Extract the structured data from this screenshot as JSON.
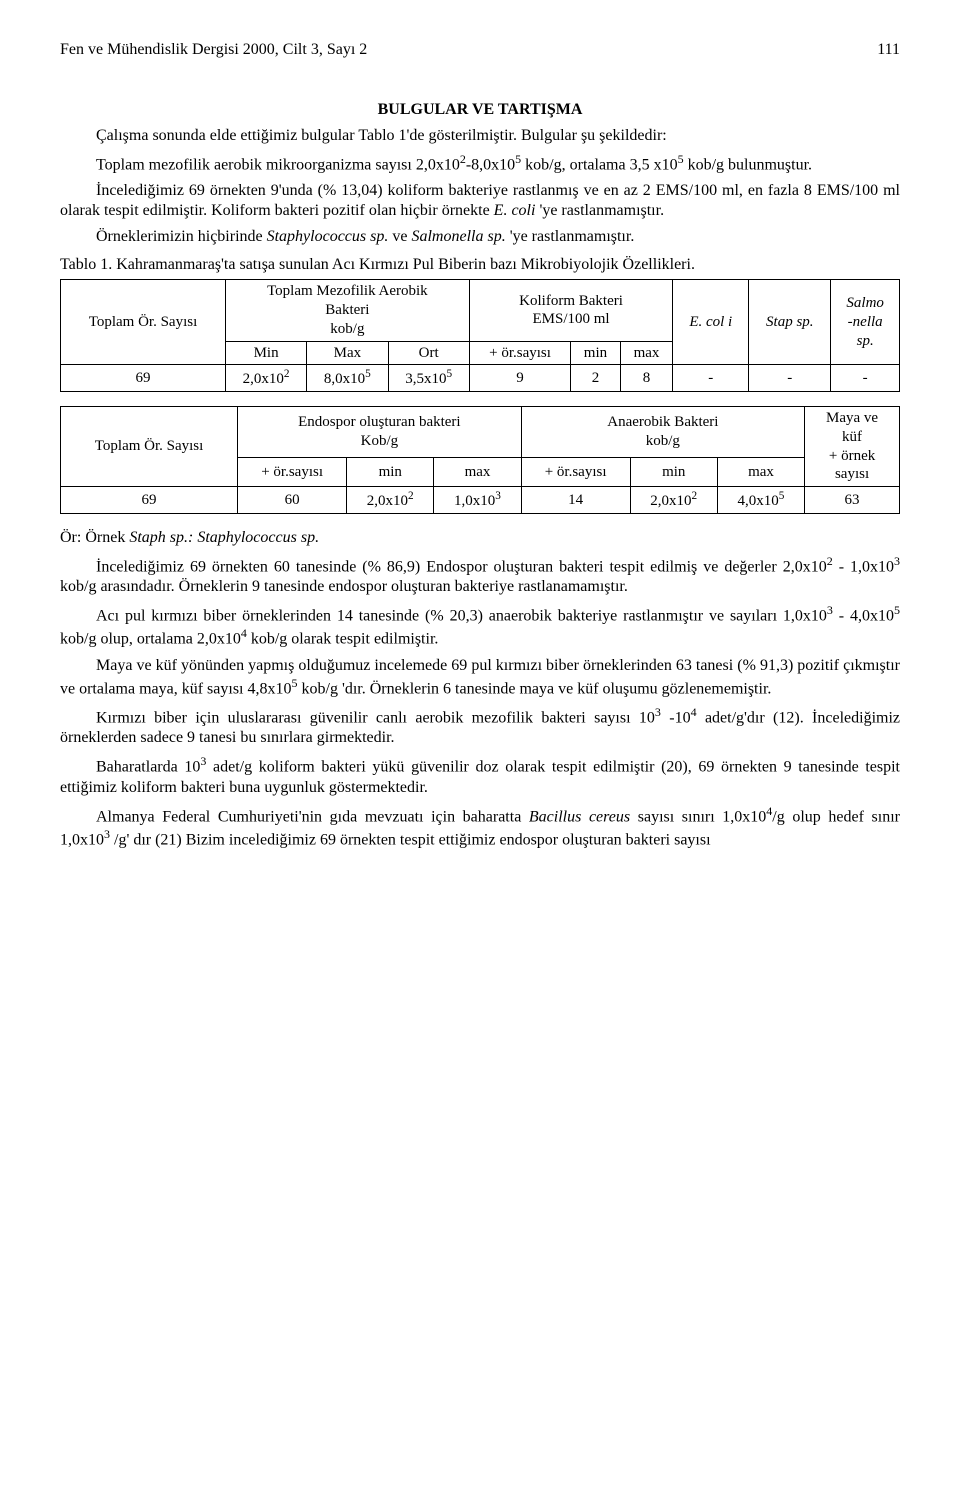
{
  "header": {
    "journal": "Fen ve Mühendislik Dergisi 2000, Cilt 3, Sayı 2",
    "page": "111"
  },
  "section_title": "BULGULAR VE TARTIŞMA",
  "p1": "Çalışma sonunda elde ettiğimiz bulgular Tablo 1'de gösterilmiştir. Bulgular şu şekildedir:",
  "p2_a": "Toplam mezofilik aerobik mikroorganizma sayısı 2,0x10",
  "p2_b": "-8,0x10",
  "p2_c": " kob/g, ortalama 3,5 x10",
  "p2_d": " kob/g bulunmuştur.",
  "p2_sup1": "2",
  "p2_sup2": "5",
  "p2_sup3": "5",
  "p3_a": "İncelediğimiz 69 örnekten 9'unda (% 13,04) koliform bakteriye rastlanmış ve en az 2 EMS/100 ml, en fazla 8 EMS/100 ml olarak tespit edilmiştir. Koliform bakteri pozitif olan hiçbir örnekte ",
  "p3_b": "E. coli",
  "p3_c": " 'ye rastlanmamıştır.",
  "p4_a": "Örneklerimizin hiçbirinde ",
  "p4_b": "Staphylococcus sp.",
  "p4_c": " ve ",
  "p4_d": "Salmonella sp.",
  "p4_e": " 'ye rastlanmamıştır.",
  "table1_caption": "Tablo 1. Kahramanmaraş'ta satışa sunulan Acı Kırmızı Pul Biberin bazı Mikrobiyolojik Özellikleri.",
  "table1": {
    "h1": "Toplam Ör. Sayısı",
    "h2_line1": "Toplam Mezofilik Aerobik",
    "h2_line2": "Bakteri",
    "h2_line3": "kob/g",
    "h3_line1": "Koliform Bakteri",
    "h3_line2": "EMS/100 ml",
    "h4": "E. col i",
    "h5": "Stap sp.",
    "h6_line1": "Salmo",
    "h6_line2": "-nella",
    "h6_line3": "sp.",
    "sub_min": "Min",
    "sub_max": "Max",
    "sub_ort": "Ort",
    "sub_orsayisi": "+ ör.sayısı",
    "sub_min2": "min",
    "sub_max2": "max",
    "r_c1": "69",
    "r_c2a": "2,0x10",
    "r_c2s": "2",
    "r_c3a": "8,0x10",
    "r_c3s": "5",
    "r_c4a": "3,5x10",
    "r_c4s": "5",
    "r_c5": "9",
    "r_c6": "2",
    "r_c7": "8",
    "r_c8": "-",
    "r_c9": "-",
    "r_c10": "-"
  },
  "table2": {
    "h1": "Toplam Ör. Sayısı",
    "h2_line1": "Endospor oluşturan bakteri",
    "h2_line2": "Kob/g",
    "h3_line1": "Anaerobik Bakteri",
    "h3_line2": "kob/g",
    "h4_line1": "Maya ve",
    "h4_line2": "küf",
    "h4_line3": "+ örnek",
    "h4_line4": "sayısı",
    "sub_orsayisi": "+ ör.sayısı",
    "sub_min": "min",
    "sub_max": "max",
    "r_c1": "69",
    "r_c2": "60",
    "r_c3a": "2,0x10",
    "r_c3s": "2",
    "r_c4a": "1,0x10",
    "r_c4s": "3",
    "r_c5": "14",
    "r_c6a": "2,0x10",
    "r_c6s": "2",
    "r_c7a": "4,0x10",
    "r_c7s": "5",
    "r_c8": "63"
  },
  "footnote_a": "Ör: Örnek ",
  "footnote_b": "Staph sp.: Staphylococcus sp.",
  "p5_a": "İncelediğimiz 69 örnekten 60 tanesinde (% 86,9) Endospor oluşturan bakteri tespit edilmiş ve değerler 2,0x10",
  "p5_b": " - 1,0x10",
  "p5_c": " kob/g arasındadır. Örneklerin 9 tanesinde endospor oluşturan bakteriye rastlanamamıştır.",
  "p5_s1": "2",
  "p5_s2": "3",
  "p6_a": "Acı pul kırmızı biber örneklerinden 14 tanesinde (% 20,3) anaerobik bakteriye rastlanmıştır ve sayıları 1,0x10",
  "p6_b": " - 4,0x10",
  "p6_c": " kob/g olup, ortalama 2,0x10",
  "p6_d": " kob/g olarak tespit edilmiştir.",
  "p6_s1": "3",
  "p6_s2": "5",
  "p6_s3": "4",
  "p7_a": "Maya ve küf yönünden yapmış olduğumuz incelemede 69 pul kırmızı biber örneklerinden 63 tanesi (% 91,3) pozitif çıkmıştır ve ortalama maya, küf sayısı 4,8x10",
  "p7_b": " kob/g 'dır. Örneklerin 6 tanesinde maya ve küf oluşumu gözlenememiştir.",
  "p7_s1": "5",
  "p8_a": "Kırmızı biber için uluslararası güvenilir canlı aerobik mezofilik bakteri sayısı 10",
  "p8_b": " -10",
  "p8_c": " adet/g'dır (12). İncelediğimiz örneklerden sadece 9 tanesi bu sınırlara girmektedir.",
  "p8_s1": "3",
  "p8_s2": "4",
  "p9_a": "Baharatlarda 10",
  "p9_b": " adet/g koliform bakteri yükü güvenilir doz olarak tespit edilmiştir (20), 69 örnekten 9 tanesinde tespit ettiğimiz koliform bakteri buna uygunluk göstermektedir.",
  "p9_s1": "3",
  "p10_a": "Almanya Federal Cumhuriyeti'nin gıda mevzuatı için baharatta ",
  "p10_b": "Bacillus cereus",
  "p10_c": " sayısı sınırı 1,0x10",
  "p10_d": "/g olup hedef sınır 1,0x10",
  "p10_e": " /g' dır (21) Bizim incelediğimiz 69 örnekten tespit ettiğimiz endospor oluşturan bakteri sayısı",
  "p10_s1": "4",
  "p10_s2": "3"
}
